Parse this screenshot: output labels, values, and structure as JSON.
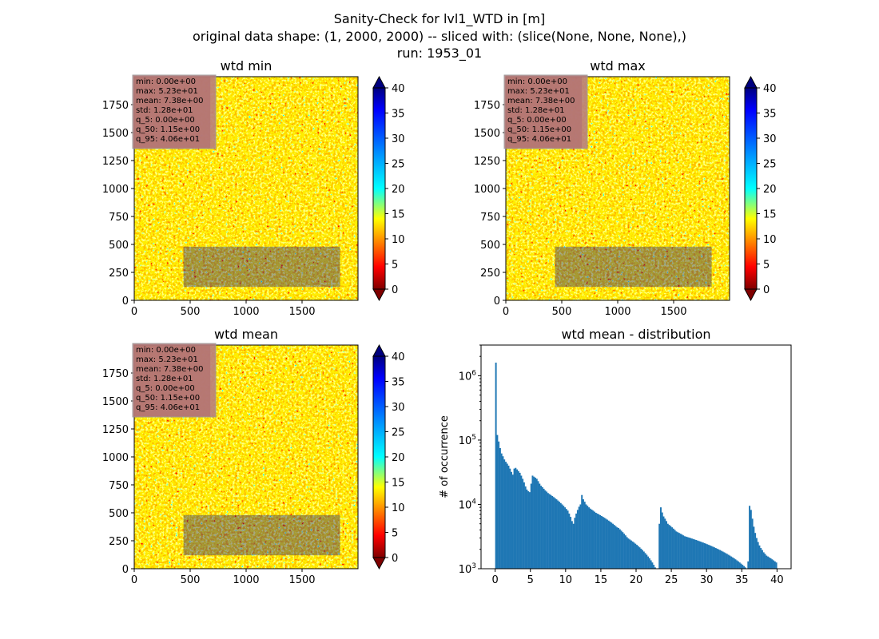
{
  "figure": {
    "title_lines": [
      "Sanity-Check for lvl1_WTD in [m]",
      "original data shape: (1, 2000, 2000) -- sliced with: (slice(None, None, None),)",
      "run: 1953_01"
    ]
  },
  "stats_box": [
    "min: 0.00e+00",
    "max: 5.23e+01",
    "mean: 7.38e+00",
    "std: 1.28e+01",
    "q_5: 0.00e+00",
    "q_50: 1.15e+00",
    "q_95: 4.06e+01"
  ],
  "colors": {
    "hist_bar": "#1f77b4",
    "stats_box_bg": "#b97f7f",
    "colormap": "jet_r"
  },
  "chart_data": [
    {
      "type": "heatmap",
      "title": "wtd min",
      "xlim": [
        0,
        2000
      ],
      "ylim": [
        0,
        2000
      ],
      "xticks": [
        0,
        500,
        1000,
        1500
      ],
      "yticks": [
        0,
        250,
        500,
        750,
        1000,
        1250,
        1500,
        1750
      ],
      "colorbar": {
        "range": [
          0,
          40
        ],
        "ticks": [
          0,
          5,
          10,
          15,
          20,
          25,
          30,
          35,
          40
        ],
        "extend": "both",
        "colormap": "jet_r"
      }
    },
    {
      "type": "heatmap",
      "title": "wtd max",
      "xlim": [
        0,
        2000
      ],
      "ylim": [
        0,
        2000
      ],
      "xticks": [
        0,
        500,
        1000,
        1500
      ],
      "yticks": [
        0,
        250,
        500,
        750,
        1000,
        1250,
        1500,
        1750
      ],
      "colorbar": {
        "range": [
          0,
          40
        ],
        "ticks": [
          0,
          5,
          10,
          15,
          20,
          25,
          30,
          35,
          40
        ],
        "extend": "both",
        "colormap": "jet_r"
      }
    },
    {
      "type": "heatmap",
      "title": "wtd mean",
      "xlim": [
        0,
        2000
      ],
      "ylim": [
        0,
        2000
      ],
      "xticks": [
        0,
        500,
        1000,
        1500
      ],
      "yticks": [
        0,
        250,
        500,
        750,
        1000,
        1250,
        1500,
        1750
      ],
      "colorbar": {
        "range": [
          0,
          40
        ],
        "ticks": [
          0,
          5,
          10,
          15,
          20,
          25,
          30,
          35,
          40
        ],
        "extend": "both",
        "colormap": "jet_r"
      }
    },
    {
      "type": "bar",
      "title": "wtd mean - distribution",
      "xlabel": "",
      "ylabel": "# of occurrence",
      "yscale": "log",
      "xlim": [
        -2,
        42
      ],
      "ylim": [
        1000,
        3000000
      ],
      "xticks": [
        0,
        5,
        10,
        15,
        20,
        25,
        30,
        35,
        40
      ],
      "yticks": [
        {
          "value": 1000,
          "label": "10^3"
        },
        {
          "value": 10000,
          "label": "10^4"
        },
        {
          "value": 100000,
          "label": "10^5"
        },
        {
          "value": 1000000,
          "label": "10^6"
        }
      ],
      "bin_start": 0,
      "bin_width": 0.2,
      "values": [
        1600000,
        120000,
        95000,
        75000,
        62000,
        56000,
        50000,
        46000,
        43000,
        40000,
        36000,
        32000,
        29000,
        36000,
        37000,
        35000,
        33000,
        31000,
        28000,
        25000,
        22000,
        19000,
        17000,
        16000,
        15500,
        21000,
        28000,
        27000,
        26000,
        25000,
        23000,
        21000,
        19500,
        18500,
        17500,
        16500,
        15800,
        15000,
        14500,
        14000,
        13500,
        13000,
        12500,
        12000,
        11500,
        11000,
        10500,
        10000,
        9500,
        9000,
        8500,
        8000,
        7200,
        6400,
        5500,
        5000,
        6200,
        7200,
        8200,
        9200,
        10000,
        14000,
        12000,
        11000,
        10000,
        9500,
        9000,
        8600,
        8300,
        8000,
        7700,
        7400,
        7200,
        7000,
        6800,
        6600,
        6400,
        6200,
        6000,
        5800,
        5600,
        5400,
        5200,
        5000,
        4800,
        4600,
        4400,
        4300,
        4100,
        3900,
        3700,
        3500,
        3300,
        3100,
        2950,
        2850,
        2750,
        2650,
        2550,
        2450,
        2350,
        2250,
        2150,
        2050,
        1950,
        1850,
        1750,
        1650,
        1550,
        1450,
        1350,
        1250,
        1150,
        1050,
        950,
        850,
        5000,
        9000,
        7500,
        6500,
        6000,
        5500,
        5000,
        4800,
        4600,
        4400,
        4200,
        4000,
        3800,
        3700,
        3600,
        3500,
        3400,
        3300,
        3200,
        3150,
        3100,
        3050,
        3000,
        2950,
        2900,
        2850,
        2800,
        2750,
        2700,
        2650,
        2600,
        2550,
        2500,
        2450,
        2400,
        2350,
        2300,
        2250,
        2200,
        2150,
        2100,
        2050,
        2000,
        1950,
        1900,
        1850,
        1800,
        1750,
        1700,
        1650,
        1600,
        1550,
        1500,
        1450,
        1400,
        1350,
        1300,
        1250,
        1200,
        1150,
        1100,
        1050,
        1000,
        1300,
        9500,
        8200,
        6000,
        4500,
        3600,
        3000,
        2600,
        2300,
        2100,
        1950,
        1800,
        1700,
        1600,
        1550,
        1500,
        1450,
        1400,
        1350,
        1300,
        1250
      ]
    }
  ]
}
